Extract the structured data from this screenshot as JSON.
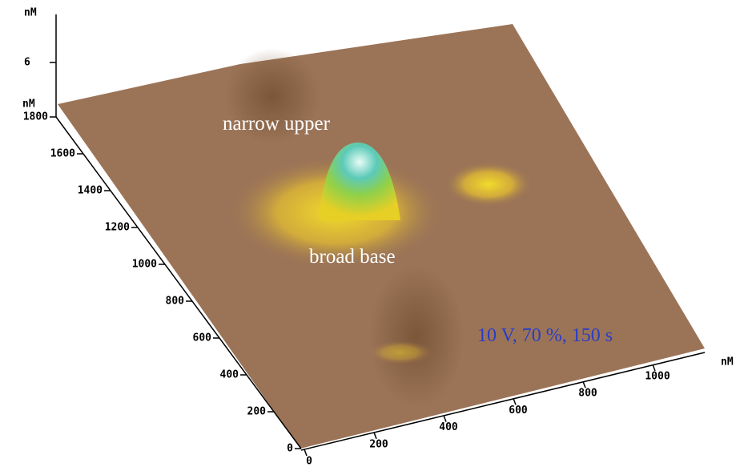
{
  "z_axis": {
    "unit": "nM",
    "ticks": [
      "6"
    ]
  },
  "y_axis": {
    "unit": "nM",
    "ticks": [
      "0",
      "200",
      "400",
      "600",
      "800",
      "1000",
      "1200",
      "1400",
      "1600",
      "1800"
    ]
  },
  "x_axis": {
    "unit": "nM",
    "ticks": [
      "0",
      "200",
      "400",
      "600",
      "800",
      "1000"
    ]
  },
  "annotations": {
    "peak": "narrow upper",
    "base": "broad base",
    "conditions": "10 V, 70 %, 150 s"
  }
}
